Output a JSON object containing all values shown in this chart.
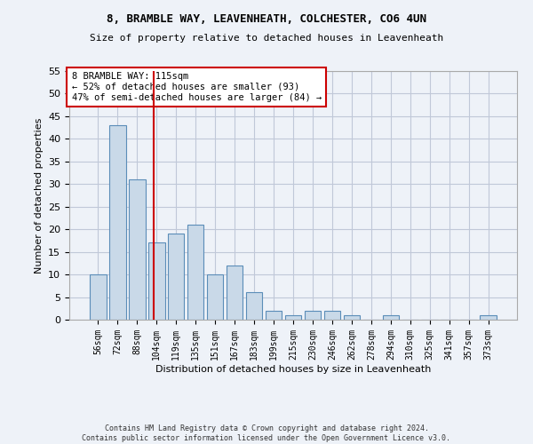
{
  "title_line1": "8, BRAMBLE WAY, LEAVENHEATH, COLCHESTER, CO6 4UN",
  "title_line2": "Size of property relative to detached houses in Leavenheath",
  "xlabel": "Distribution of detached houses by size in Leavenheath",
  "ylabel": "Number of detached properties",
  "categories": [
    "56sqm",
    "72sqm",
    "88sqm",
    "104sqm",
    "119sqm",
    "135sqm",
    "151sqm",
    "167sqm",
    "183sqm",
    "199sqm",
    "215sqm",
    "230sqm",
    "246sqm",
    "262sqm",
    "278sqm",
    "294sqm",
    "310sqm",
    "325sqm",
    "341sqm",
    "357sqm",
    "373sqm"
  ],
  "values": [
    10,
    43,
    31,
    17,
    19,
    21,
    10,
    12,
    6,
    2,
    1,
    2,
    2,
    1,
    0,
    1,
    0,
    0,
    0,
    0,
    1
  ],
  "bar_color": "#c9d9e8",
  "bar_edge_color": "#5b8db8",
  "grid_color": "#c0c8d8",
  "vline_x_index": 3,
  "vline_color": "#cc0000",
  "annotation_text": "8 BRAMBLE WAY: 115sqm\n← 52% of detached houses are smaller (93)\n47% of semi-detached houses are larger (84) →",
  "annotation_box_color": "#ffffff",
  "annotation_box_edge_color": "#cc0000",
  "ylim": [
    0,
    55
  ],
  "yticks": [
    0,
    5,
    10,
    15,
    20,
    25,
    30,
    35,
    40,
    45,
    50,
    55
  ],
  "footer_line1": "Contains HM Land Registry data © Crown copyright and database right 2024.",
  "footer_line2": "Contains public sector information licensed under the Open Government Licence v3.0.",
  "bg_color": "#eef2f8"
}
